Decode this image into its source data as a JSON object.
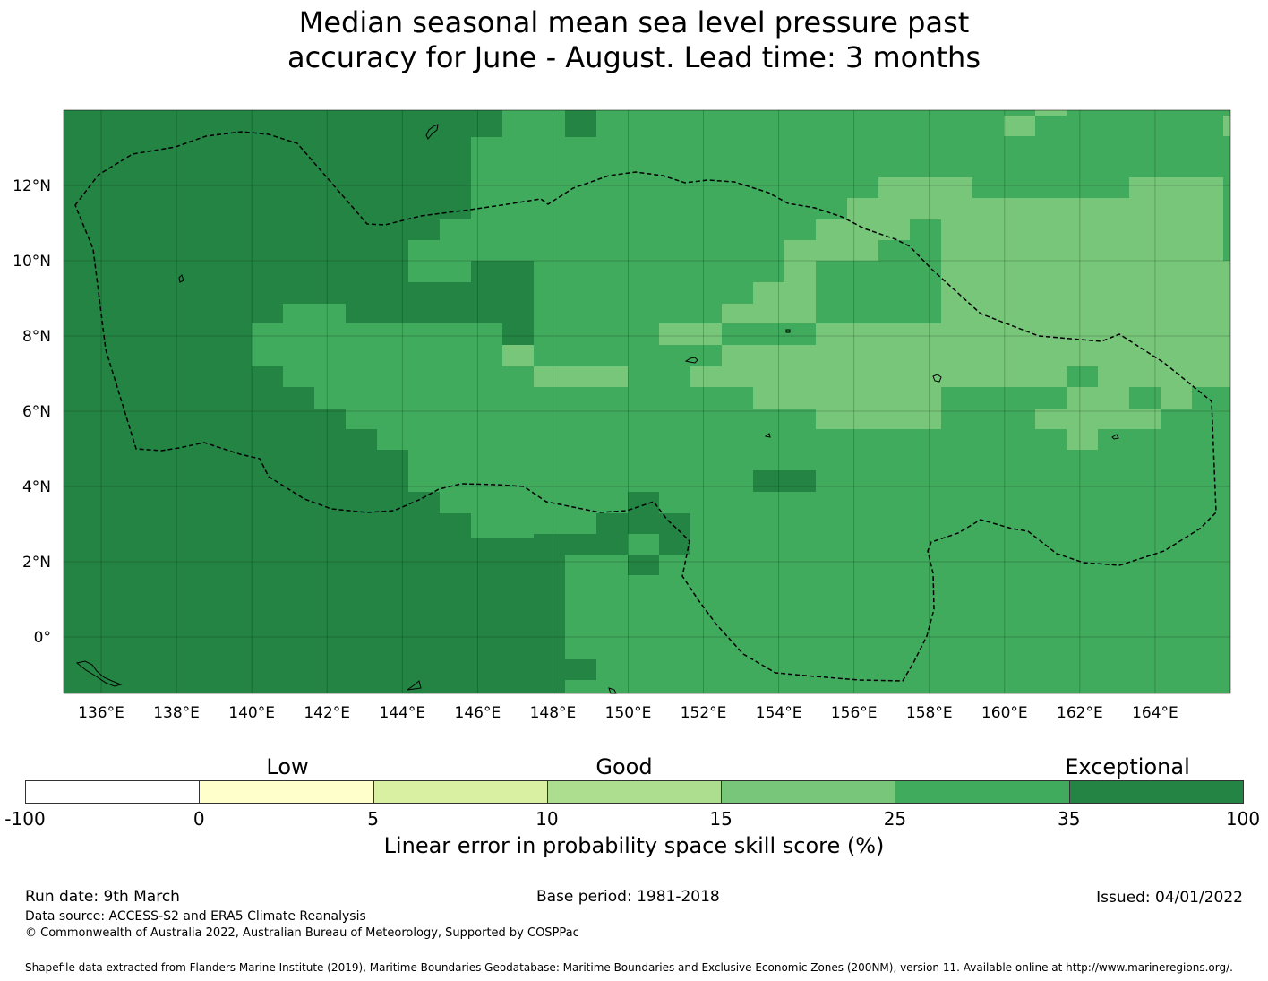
{
  "title": {
    "line1": "Median seasonal mean sea level pressure past",
    "line2": "accuracy for June - August. Lead time: 3 months"
  },
  "map": {
    "lon_range": [
      135.0,
      166.0
    ],
    "lat_range": [
      -1.5,
      14.0
    ],
    "lon_ticks": [
      "136°E",
      "138°E",
      "140°E",
      "142°E",
      "144°E",
      "146°E",
      "148°E",
      "150°E",
      "152°E",
      "154°E",
      "156°E",
      "158°E",
      "160°E",
      "162°E",
      "164°E"
    ],
    "lat_ticks": [
      "12°N",
      "10°N",
      "8°N",
      "6°N",
      "4°N",
      "2°N",
      "0°"
    ],
    "gridlines": true,
    "eez_boundary": "dashed"
  },
  "colorbar": {
    "categories": [
      "Low",
      "Good",
      "Exceptional"
    ],
    "bins": [
      {
        "from": "-100",
        "to": "0",
        "color": "#ffffff"
      },
      {
        "from": "0",
        "to": "5",
        "color": "#ffffcc"
      },
      {
        "from": "5",
        "to": "10",
        "color": "#d9f0a3"
      },
      {
        "from": "10",
        "to": "15",
        "color": "#addd8e"
      },
      {
        "from": "15",
        "to": "25",
        "color": "#78c679"
      },
      {
        "from": "25",
        "to": "35",
        "color": "#41ab5d"
      },
      {
        "from": "35",
        "to": "100",
        "color": "#238443"
      }
    ],
    "tick_labels": [
      "-100",
      "0",
      "5",
      "10",
      "15",
      "25",
      "35",
      "100"
    ],
    "label": "Linear error in probability space skill score (%)"
  },
  "footer": {
    "run_date": "Run date: 9th March",
    "base_period": "Base period: 1981-2018",
    "issued": "Issued: 04/01/2022",
    "data_source": "Data source: ACCESS-S2 and ERA5 Climate Reanalysis",
    "copyright": "© Commonwealth of Australia 2022, Australian Bureau of Meteorology, Supported by COSPPac",
    "shapefile": "Shapefile data extracted from Flanders Marine Institute (2019), Maritime Boundaries Geodatabase: Maritime Boundaries and Exclusive Economic Zones (200NM), version 11. Available online at http://www.marineregions.org/."
  }
}
